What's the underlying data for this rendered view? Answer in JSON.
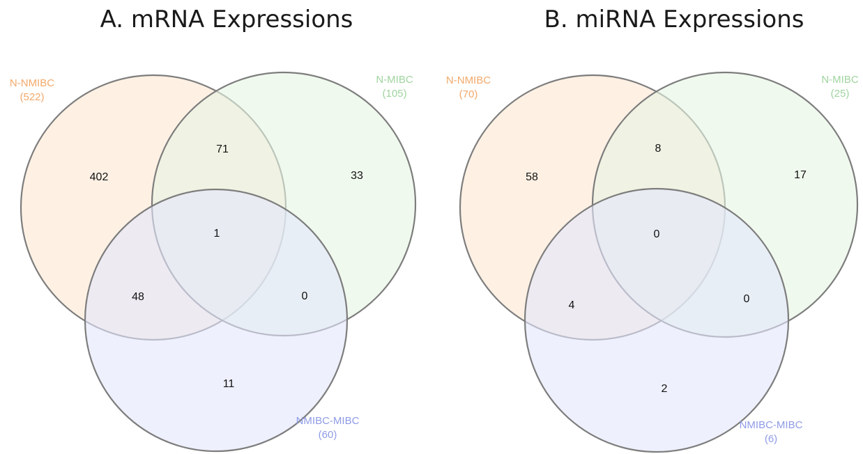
{
  "colors": {
    "set1": "#f2a96a",
    "set2": "#9fd49f",
    "set3": "#8f9be6",
    "fill1": "#fde8d2",
    "fill2": "#e6f5e3",
    "fill3": "#e3e6fb",
    "stroke": "#7d7d7d"
  },
  "panels": [
    {
      "title": "A. mRNA Expressions",
      "sets": [
        {
          "name": "N-NMIBC",
          "size": "(522)"
        },
        {
          "name": "N-MIBC",
          "size": "(105)"
        },
        {
          "name": "NMIBC-MIBC",
          "size": "(60)"
        }
      ],
      "regions": {
        "only1": "402",
        "only2": "33",
        "only3": "11",
        "s12": "71",
        "s13": "48",
        "s23": "0",
        "s123": "1"
      }
    },
    {
      "title": "B. miRNA Expressions",
      "sets": [
        {
          "name": "N-NMIBC",
          "size": "(70)"
        },
        {
          "name": "N-MIBC",
          "size": "(25)"
        },
        {
          "name": "NMIBC-MIBC",
          "size": "(6)"
        }
      ],
      "regions": {
        "only1": "58",
        "only2": "17",
        "only3": "2",
        "s12": "8",
        "s13": "4",
        "s23": "0",
        "s123": "0"
      }
    }
  ]
}
